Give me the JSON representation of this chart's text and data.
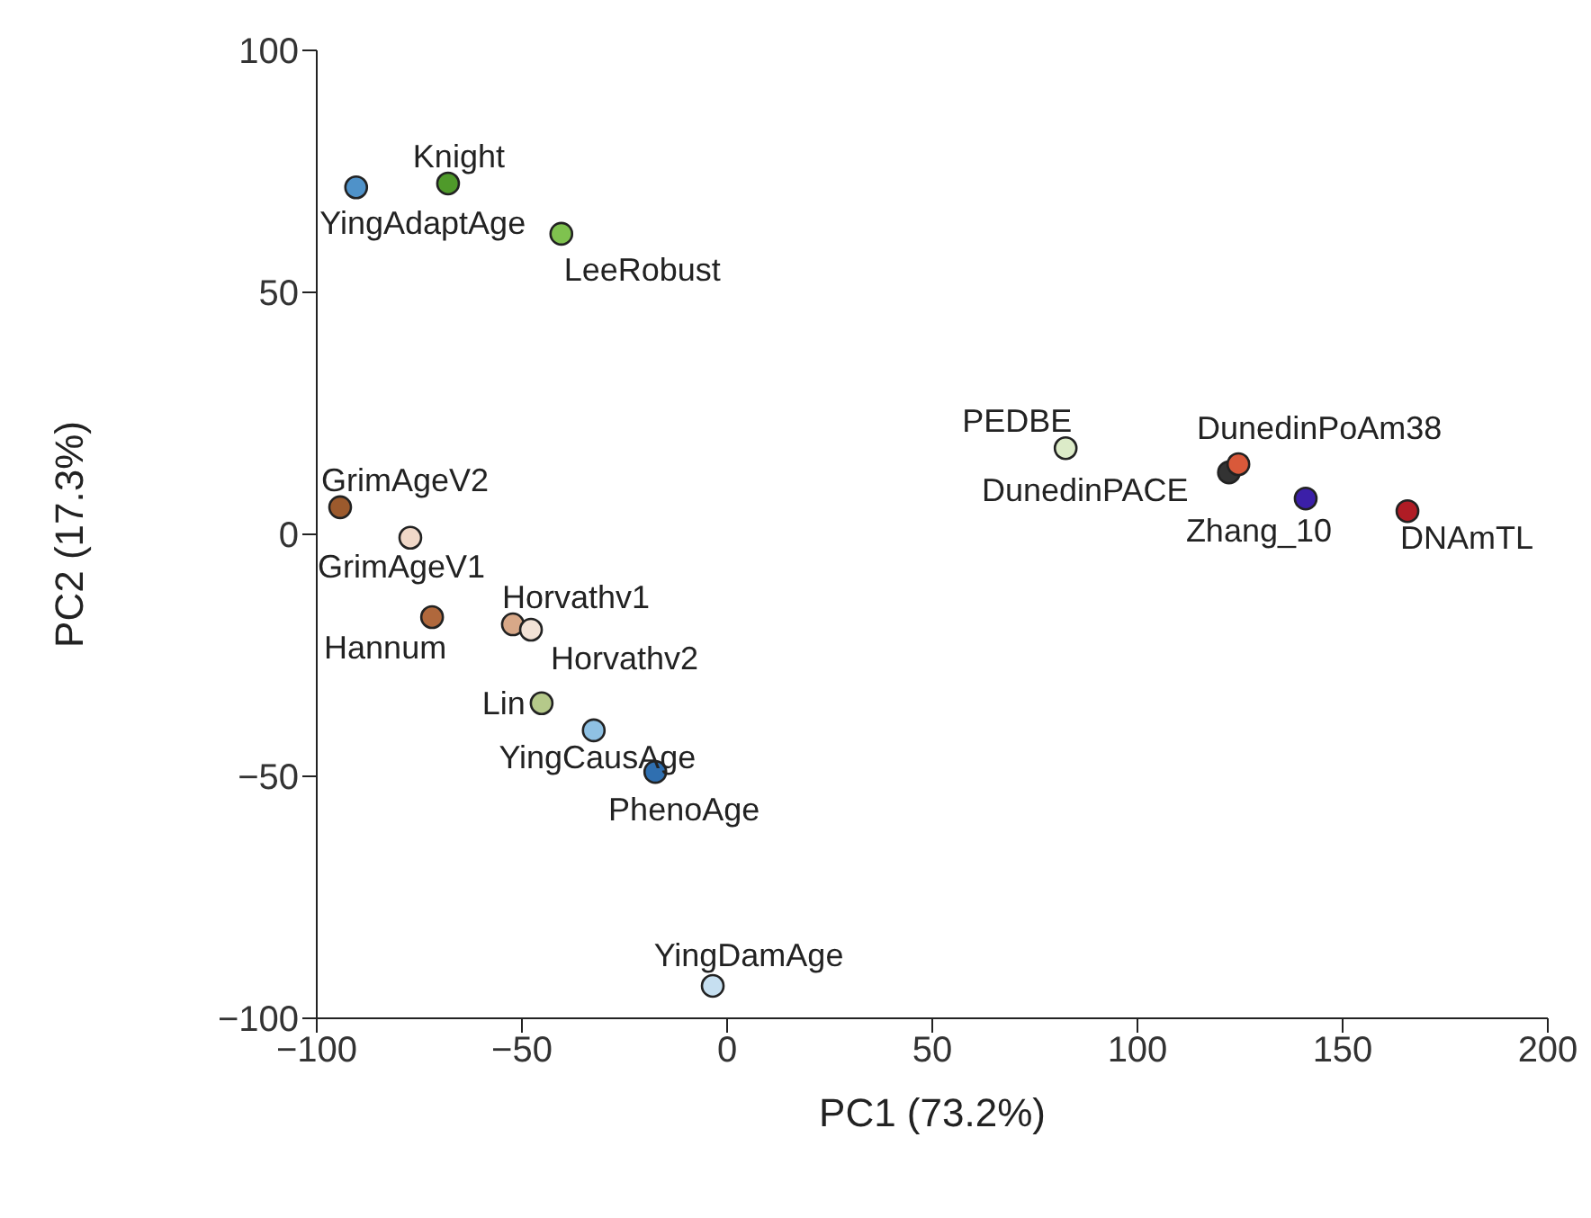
{
  "chart_data": {
    "type": "scatter",
    "xlabel": "PC1 (73.2%)",
    "ylabel": "PC2 (17.3%)",
    "x": [
      -90.4,
      -68,
      -40.4,
      -94.3,
      -77.2,
      -71.9,
      -52.2,
      -47.8,
      -45.2,
      -32.5,
      -17.5,
      -3.5,
      82.5,
      122.3,
      124.6,
      141,
      165.8
    ],
    "values": [
      71.7,
      72.5,
      62.1,
      5.6,
      -0.7,
      -17.1,
      -18.6,
      -19.7,
      -34.9,
      -40.5,
      -49.1,
      -93.3,
      17.8,
      12.8,
      14.5,
      7.4,
      4.8
    ],
    "colors": [
      "#4f92c9",
      "#4f9a2a",
      "#7fc24f",
      "#9c5a2d",
      "#f0d8c8",
      "#b0683c",
      "#d8a888",
      "#f2e2d6",
      "#b5c98a",
      "#8fc1e3",
      "#2f6fb0",
      "#c6dff0",
      "#dcebc8",
      "#333333",
      "#d9593a",
      "#3b1fa8",
      "#b01c25"
    ],
    "marker": "circle",
    "grid": false,
    "legend": false,
    "xlim": [
      -100,
      200
    ],
    "xticks": [
      -100,
      -50,
      0,
      50,
      100,
      150,
      200
    ],
    "ylim": [
      -100,
      100
    ],
    "yticks": [
      -100,
      -50,
      0,
      50,
      100
    ],
    "annotations": [
      {
        "text": "YingAdaptAge",
        "x": -90.4,
        "y": 71.7
      },
      {
        "text": "Knight",
        "x": -68,
        "y": 72.5
      },
      {
        "text": "LeeRobust",
        "x": -40.4,
        "y": 62.1
      },
      {
        "text": "GrimAgeV2",
        "x": -94.3,
        "y": 5.6
      },
      {
        "text": "GrimAgeV1",
        "x": -77.2,
        "y": -0.7
      },
      {
        "text": "Hannum",
        "x": -71.9,
        "y": -17.1
      },
      {
        "text": "Horvathv1",
        "x": -52.2,
        "y": -18.6
      },
      {
        "text": "Horvathv2",
        "x": -47.8,
        "y": -19.7
      },
      {
        "text": "Lin",
        "x": -45.2,
        "y": -34.9
      },
      {
        "text": "YingCausAge",
        "x": -32.5,
        "y": -40.5
      },
      {
        "text": "PhenoAge",
        "x": -17.5,
        "y": -49.1
      },
      {
        "text": "YingDamAge",
        "x": -3.5,
        "y": -93.3
      },
      {
        "text": "PEDBE",
        "x": 82.5,
        "y": 17.8
      },
      {
        "text": "DunedinPACE",
        "x": 122.3,
        "y": 12.8
      },
      {
        "text": "DunedinPoAm38",
        "x": 124.6,
        "y": 14.5
      },
      {
        "text": "Zhang_10",
        "x": 141,
        "y": 7.4
      },
      {
        "text": "DNAmTL",
        "x": 165.8,
        "y": 4.8
      }
    ]
  }
}
